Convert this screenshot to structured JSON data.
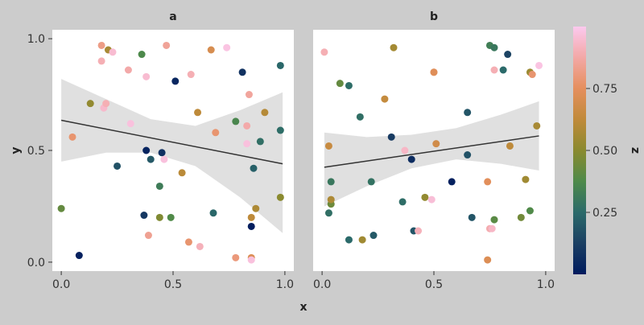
{
  "chart_data": {
    "type": "scatter",
    "xlabel": "x",
    "ylabel": "y",
    "colorbar": {
      "label": "z",
      "ticks": [
        "0.25",
        "0.50",
        "0.75"
      ],
      "tick_values": [
        0.25,
        0.5,
        0.75
      ],
      "range": [
        0.0,
        1.0
      ]
    },
    "xlim": [
      -0.04,
      1.04
    ],
    "ylim": [
      -0.04,
      1.04
    ],
    "x_ticks": [
      "0.0",
      "0.5",
      "1.0"
    ],
    "y_ticks": [
      "0.0",
      "0.5",
      "1.0"
    ],
    "grid": false,
    "panels": [
      {
        "label": "a",
        "regression": {
          "x0": 0.0,
          "y0": 0.635,
          "x1": 0.99,
          "y1": 0.44
        },
        "band_upper": [
          [
            0.0,
            0.82
          ],
          [
            0.2,
            0.73
          ],
          [
            0.4,
            0.64
          ],
          [
            0.6,
            0.61
          ],
          [
            0.8,
            0.68
          ],
          [
            0.99,
            0.76
          ]
        ],
        "band_lower": [
          [
            0.0,
            0.45
          ],
          [
            0.2,
            0.49
          ],
          [
            0.4,
            0.49
          ],
          [
            0.6,
            0.43
          ],
          [
            0.8,
            0.29
          ],
          [
            0.99,
            0.13
          ]
        ],
        "points": [
          {
            "x": 0.0,
            "y": 0.24,
            "z": 0.42
          },
          {
            "x": 0.05,
            "y": 0.56,
            "z": 0.78
          },
          {
            "x": 0.08,
            "y": 0.03,
            "z": 0.02
          },
          {
            "x": 0.13,
            "y": 0.71,
            "z": 0.52
          },
          {
            "x": 0.18,
            "y": 0.97,
            "z": 0.82
          },
          {
            "x": 0.18,
            "y": 0.9,
            "z": 0.9
          },
          {
            "x": 0.19,
            "y": 0.69,
            "z": 0.94
          },
          {
            "x": 0.2,
            "y": 0.71,
            "z": 0.9
          },
          {
            "x": 0.21,
            "y": 0.95,
            "z": 0.57
          },
          {
            "x": 0.23,
            "y": 0.94,
            "z": 0.95
          },
          {
            "x": 0.25,
            "y": 0.43,
            "z": 0.18
          },
          {
            "x": 0.3,
            "y": 0.86,
            "z": 0.88
          },
          {
            "x": 0.31,
            "y": 0.62,
            "z": 0.97
          },
          {
            "x": 0.36,
            "y": 0.93,
            "z": 0.37
          },
          {
            "x": 0.37,
            "y": 0.21,
            "z": 0.1
          },
          {
            "x": 0.38,
            "y": 0.83,
            "z": 0.95
          },
          {
            "x": 0.38,
            "y": 0.5,
            "z": 0.03
          },
          {
            "x": 0.39,
            "y": 0.12,
            "z": 0.84
          },
          {
            "x": 0.4,
            "y": 0.46,
            "z": 0.2
          },
          {
            "x": 0.44,
            "y": 0.34,
            "z": 0.32
          },
          {
            "x": 0.44,
            "y": 0.2,
            "z": 0.48
          },
          {
            "x": 0.45,
            "y": 0.49,
            "z": 0.07
          },
          {
            "x": 0.46,
            "y": 0.46,
            "z": 0.97
          },
          {
            "x": 0.47,
            "y": 0.97,
            "z": 0.85
          },
          {
            "x": 0.49,
            "y": 0.2,
            "z": 0.38
          },
          {
            "x": 0.51,
            "y": 0.81,
            "z": 0.04
          },
          {
            "x": 0.54,
            "y": 0.4,
            "z": 0.61
          },
          {
            "x": 0.57,
            "y": 0.09,
            "z": 0.78
          },
          {
            "x": 0.58,
            "y": 0.84,
            "z": 0.9
          },
          {
            "x": 0.61,
            "y": 0.67,
            "z": 0.62
          },
          {
            "x": 0.62,
            "y": 0.07,
            "z": 0.91
          },
          {
            "x": 0.67,
            "y": 0.95,
            "z": 0.7
          },
          {
            "x": 0.68,
            "y": 0.22,
            "z": 0.24
          },
          {
            "x": 0.69,
            "y": 0.58,
            "z": 0.78
          },
          {
            "x": 0.74,
            "y": 0.96,
            "z": 0.98
          },
          {
            "x": 0.78,
            "y": 0.63,
            "z": 0.36
          },
          {
            "x": 0.78,
            "y": 0.02,
            "z": 0.8
          },
          {
            "x": 0.81,
            "y": 0.85,
            "z": 0.08
          },
          {
            "x": 0.83,
            "y": 0.61,
            "z": 0.88
          },
          {
            "x": 0.83,
            "y": 0.53,
            "z": 0.97
          },
          {
            "x": 0.84,
            "y": 0.75,
            "z": 0.86
          },
          {
            "x": 0.85,
            "y": 0.2,
            "z": 0.62
          },
          {
            "x": 0.85,
            "y": 0.16,
            "z": 0.01
          },
          {
            "x": 0.85,
            "y": 0.02,
            "z": 0.72
          },
          {
            "x": 0.85,
            "y": 0.01,
            "z": 0.97
          },
          {
            "x": 0.86,
            "y": 0.42,
            "z": 0.22
          },
          {
            "x": 0.87,
            "y": 0.24,
            "z": 0.58
          },
          {
            "x": 0.89,
            "y": 0.54,
            "z": 0.27
          },
          {
            "x": 0.91,
            "y": 0.67,
            "z": 0.6
          },
          {
            "x": 0.98,
            "y": 0.88,
            "z": 0.24
          },
          {
            "x": 0.98,
            "y": 0.59,
            "z": 0.26
          },
          {
            "x": 0.98,
            "y": 0.29,
            "z": 0.5
          }
        ]
      },
      {
        "label": "b",
        "regression": {
          "x0": 0.01,
          "y0": 0.425,
          "x1": 0.97,
          "y1": 0.565
        },
        "band_upper": [
          [
            0.01,
            0.58
          ],
          [
            0.2,
            0.56
          ],
          [
            0.4,
            0.57
          ],
          [
            0.6,
            0.6
          ],
          [
            0.8,
            0.66
          ],
          [
            0.97,
            0.72
          ]
        ],
        "band_lower": [
          [
            0.01,
            0.25
          ],
          [
            0.2,
            0.34
          ],
          [
            0.4,
            0.42
          ],
          [
            0.6,
            0.46
          ],
          [
            0.8,
            0.44
          ],
          [
            0.97,
            0.41
          ]
        ],
        "points": [
          {
            "x": 0.01,
            "y": 0.94,
            "z": 0.9
          },
          {
            "x": 0.03,
            "y": 0.22,
            "z": 0.27
          },
          {
            "x": 0.03,
            "y": 0.52,
            "z": 0.65
          },
          {
            "x": 0.04,
            "y": 0.26,
            "z": 0.44
          },
          {
            "x": 0.04,
            "y": 0.36,
            "z": 0.3
          },
          {
            "x": 0.04,
            "y": 0.28,
            "z": 0.58
          },
          {
            "x": 0.08,
            "y": 0.8,
            "z": 0.42
          },
          {
            "x": 0.12,
            "y": 0.79,
            "z": 0.26
          },
          {
            "x": 0.12,
            "y": 0.1,
            "z": 0.25
          },
          {
            "x": 0.17,
            "y": 0.65,
            "z": 0.27
          },
          {
            "x": 0.18,
            "y": 0.1,
            "z": 0.55
          },
          {
            "x": 0.22,
            "y": 0.36,
            "z": 0.28
          },
          {
            "x": 0.23,
            "y": 0.12,
            "z": 0.2
          },
          {
            "x": 0.28,
            "y": 0.73,
            "z": 0.64
          },
          {
            "x": 0.31,
            "y": 0.56,
            "z": 0.11
          },
          {
            "x": 0.32,
            "y": 0.96,
            "z": 0.56
          },
          {
            "x": 0.36,
            "y": 0.27,
            "z": 0.26
          },
          {
            "x": 0.37,
            "y": 0.5,
            "z": 0.93
          },
          {
            "x": 0.4,
            "y": 0.46,
            "z": 0.06
          },
          {
            "x": 0.41,
            "y": 0.14,
            "z": 0.19
          },
          {
            "x": 0.43,
            "y": 0.14,
            "z": 0.91
          },
          {
            "x": 0.46,
            "y": 0.29,
            "z": 0.52
          },
          {
            "x": 0.49,
            "y": 0.28,
            "z": 0.96
          },
          {
            "x": 0.5,
            "y": 0.85,
            "z": 0.77
          },
          {
            "x": 0.5,
            "y": 0.85,
            "z": 0.73
          },
          {
            "x": 0.51,
            "y": 0.53,
            "z": 0.68
          },
          {
            "x": 0.58,
            "y": 0.36,
            "z": 0.02
          },
          {
            "x": 0.65,
            "y": 0.67,
            "z": 0.19
          },
          {
            "x": 0.65,
            "y": 0.48,
            "z": 0.18
          },
          {
            "x": 0.67,
            "y": 0.2,
            "z": 0.19
          },
          {
            "x": 0.74,
            "y": 0.36,
            "z": 0.74
          },
          {
            "x": 0.74,
            "y": 0.01,
            "z": 0.72
          },
          {
            "x": 0.75,
            "y": 0.97,
            "z": 0.33
          },
          {
            "x": 0.75,
            "y": 0.15,
            "z": 0.89
          },
          {
            "x": 0.76,
            "y": 0.15,
            "z": 0.93
          },
          {
            "x": 0.77,
            "y": 0.96,
            "z": 0.3
          },
          {
            "x": 0.77,
            "y": 0.86,
            "z": 0.9
          },
          {
            "x": 0.77,
            "y": 0.19,
            "z": 0.4
          },
          {
            "x": 0.81,
            "y": 0.86,
            "z": 0.25
          },
          {
            "x": 0.83,
            "y": 0.93,
            "z": 0.14
          },
          {
            "x": 0.84,
            "y": 0.52,
            "z": 0.62
          },
          {
            "x": 0.89,
            "y": 0.2,
            "z": 0.45
          },
          {
            "x": 0.91,
            "y": 0.37,
            "z": 0.55
          },
          {
            "x": 0.93,
            "y": 0.85,
            "z": 0.54
          },
          {
            "x": 0.93,
            "y": 0.23,
            "z": 0.38
          },
          {
            "x": 0.94,
            "y": 0.84,
            "z": 0.78
          },
          {
            "x": 0.96,
            "y": 0.61,
            "z": 0.57
          },
          {
            "x": 0.97,
            "y": 0.88,
            "z": 0.98
          }
        ]
      }
    ]
  },
  "colors": {
    "band": "#e0e0e0",
    "line": "#333333",
    "panel_bg": "#ffffff",
    "colormap": [
      "#001b5e",
      "#1b3f63",
      "#2b6a6a",
      "#4e8a4a",
      "#8a8a2f",
      "#c08a3a",
      "#e58f5e",
      "#f3a8a6",
      "#fbc9ee"
    ]
  }
}
